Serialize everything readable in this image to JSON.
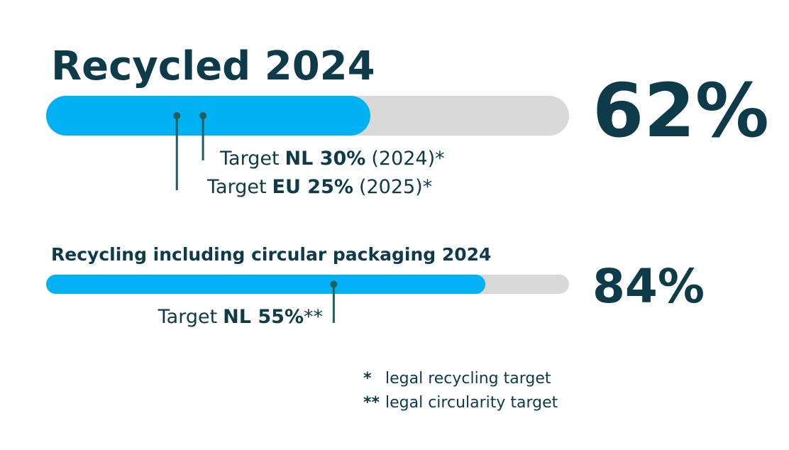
{
  "chart_data": [
    {
      "type": "progress",
      "title": "Recycled 2024",
      "value": 62,
      "value_label": "62%",
      "xlim": [
        0,
        100
      ],
      "color": "#00b1f4",
      "track_color": "#d9d9d9",
      "targets": [
        {
          "prefix": "Target",
          "value": 30,
          "label": "NL 30%",
          "suffix": "(2024)*"
        },
        {
          "prefix": "Target",
          "value": 25,
          "label": "EU 25%",
          "suffix": "(2025)*"
        }
      ]
    },
    {
      "type": "progress",
      "title": "Recycling including circular packaging 2024",
      "value": 84,
      "value_label": "84%",
      "xlim": [
        0,
        100
      ],
      "color": "#00b1f4",
      "track_color": "#d9d9d9",
      "targets": [
        {
          "prefix": "Target",
          "value": 55,
          "label": "NL 55%",
          "suffix": "**"
        }
      ]
    }
  ],
  "footnotes": [
    {
      "symbol": "*",
      "text": "legal recycling target"
    },
    {
      "symbol": "**",
      "text": "legal circularity target"
    }
  ]
}
